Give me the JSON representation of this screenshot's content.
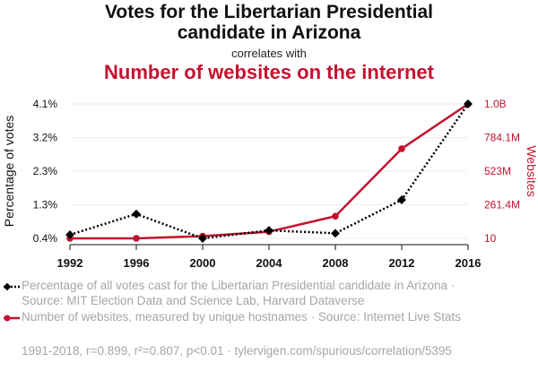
{
  "header": {
    "title_line1": "Votes for the Libertarian Presidential",
    "title_line2": "candidate in Arizona",
    "correlates": "correlates with",
    "title2": "Number of websites on the internet"
  },
  "colors": {
    "series1": "#000000",
    "series2": "#c4122f",
    "grid": "#eeeeee",
    "muted": "#a6a6a6"
  },
  "chart_data": {
    "type": "line",
    "x": [
      1992,
      1996,
      2000,
      2004,
      2008,
      2012,
      2016
    ],
    "xlim": [
      1992,
      2016
    ],
    "grid": true,
    "left_axis": {
      "label": "Percentage of votes",
      "ticks": [
        "0.4%",
        "1.3%",
        "2.3%",
        "3.2%",
        "4.1%"
      ],
      "ylim": [
        0.4,
        4.1
      ]
    },
    "right_axis": {
      "label": "Websites",
      "ticks": [
        "10",
        "261.4M",
        "523M",
        "784.1M",
        "1.0B"
      ],
      "ylim": [
        10,
        1045000000
      ]
    },
    "series": [
      {
        "name": "Percentage of all votes cast for the Libertarian Presidential candidate in Arizona · Source: MIT Election Data and Science Lab, Harvard Dataverse",
        "axis": "left",
        "style": "dotted",
        "marker": "diamond",
        "values": [
          0.5,
          1.07,
          0.4,
          0.62,
          0.54,
          1.46,
          4.1
        ]
      },
      {
        "name": "Number of websites, measured by unique hostnames · Source: Internet Live Stats",
        "axis": "right",
        "style": "solid",
        "marker": "circle",
        "values": [
          10,
          257601,
          17087182,
          51611646,
          172338726,
          697089489,
          1045000000
        ]
      }
    ]
  },
  "footer": "1991-2018, r=0.899, r²=0.807, p<0.01 · tylervigen.com/spurious/correlation/5395"
}
